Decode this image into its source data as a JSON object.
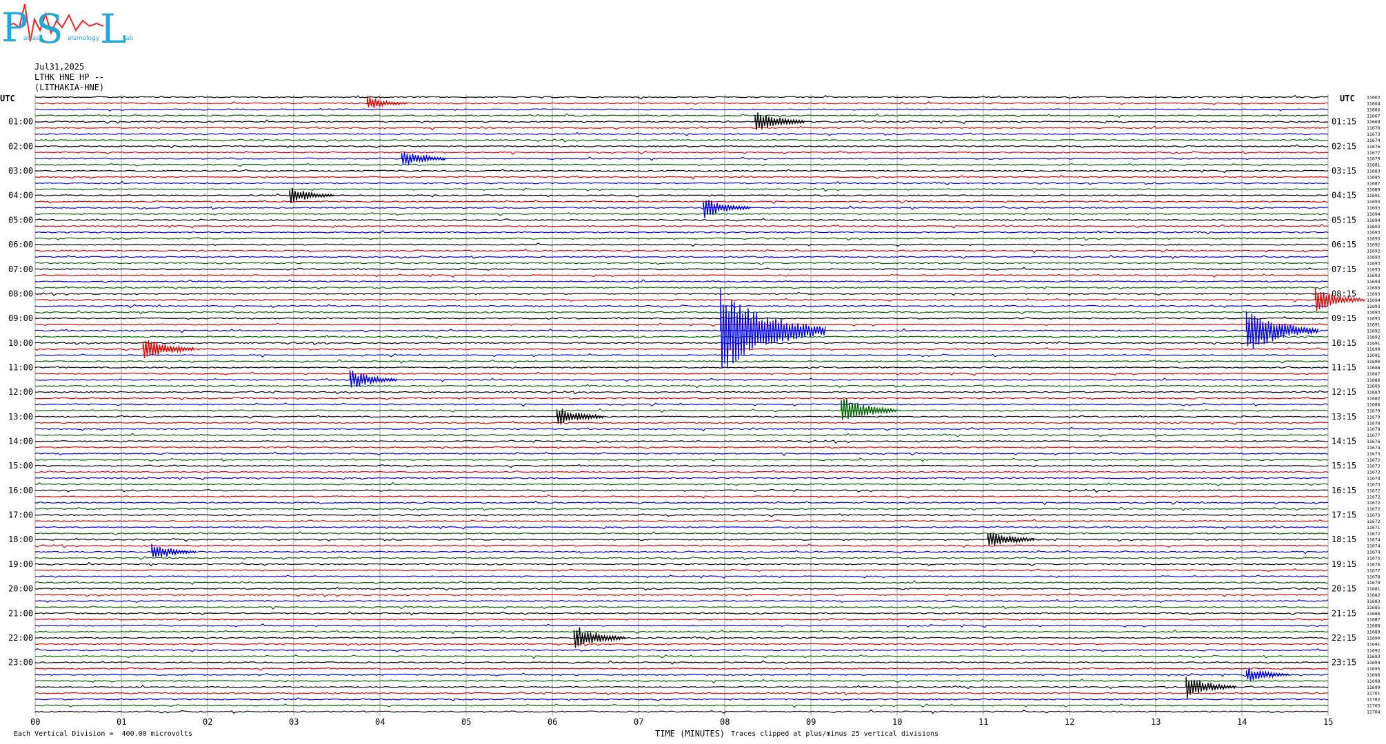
{
  "logo": {
    "letters": [
      "P",
      "S",
      "L"
    ],
    "words": [
      "atras",
      "eismology",
      "ab"
    ]
  },
  "header": {
    "date": "Jul31,2025",
    "station": "LTHK HNE HP --",
    "location": "(LITHAKIA-HNE)"
  },
  "left_axis_title": "UTC",
  "right_axis_title": "UTC",
  "footer": {
    "xlabel": "TIME (MINUTES)",
    "division": "Each Vertical Division =  400.00 microvolts",
    "clip_note": "Traces clipped at plus/minus 25 vertical divisions"
  },
  "colors": {
    "cycle": [
      "#000000",
      "#e00000",
      "#0000e0",
      "#006400"
    ],
    "grid": "#a0a0a0"
  },
  "chart_data": {
    "type": "line",
    "title": "",
    "xlabel": "TIME (MINUTES)",
    "xlim": [
      0,
      15
    ],
    "x_ticks": [
      "00",
      "01",
      "02",
      "03",
      "04",
      "05",
      "06",
      "07",
      "08",
      "09",
      "10",
      "11",
      "12",
      "13",
      "14",
      "15"
    ],
    "rows_per_hour": 4,
    "row_minutes": 15,
    "left_hour_labels": [
      "01:00",
      "02:00",
      "03:00",
      "04:00",
      "05:00",
      "06:00",
      "07:00",
      "08:00",
      "09:00",
      "10:00",
      "11:00",
      "12:00",
      "13:00",
      "14:00",
      "15:00",
      "16:00",
      "17:00",
      "18:00",
      "19:00",
      "20:00",
      "21:00",
      "22:00",
      "23:00"
    ],
    "right_hour_labels": [
      "01:15",
      "02:15",
      "03:15",
      "04:15",
      "05:15",
      "06:15",
      "07:15",
      "08:15",
      "09:15",
      "10:15",
      "11:15",
      "12:15",
      "13:15",
      "14:15",
      "15:15",
      "16:15",
      "17:15",
      "18:15",
      "19:15",
      "20:15",
      "21:15",
      "22:15",
      "23:15"
    ],
    "right_row_values": [
      11663,
      11664,
      11666,
      11667,
      11669,
      11670,
      11673,
      11674,
      11676,
      11677,
      11679,
      11681,
      11683,
      11685,
      11687,
      11689,
      11691,
      11693,
      11693,
      11694,
      11694,
      11693,
      11693,
      11693,
      11692,
      11692,
      11693,
      11693,
      11693,
      11693,
      11694,
      11693,
      11693,
      11694,
      11693,
      11693,
      11693,
      11691,
      11692,
      11692,
      11691,
      11690,
      11691,
      11690,
      11688,
      11687,
      11686,
      11685,
      11683,
      11682,
      11680,
      11679,
      11679,
      11678,
      11678,
      11677,
      11676,
      11674,
      11673,
      11672,
      11672,
      11672,
      11674,
      11673,
      11672,
      11672,
      11672,
      11672,
      11673,
      11672,
      11671,
      11672,
      11674,
      11674,
      11674,
      11675,
      11676,
      11677,
      11678,
      11679,
      11681,
      11682,
      11683,
      11685,
      11686,
      11687,
      11688,
      11689,
      11690,
      11691,
      11692,
      11693,
      11694,
      11695,
      11696,
      11698,
      11699,
      11701,
      11702,
      11703,
      11704
    ],
    "events": [
      {
        "row": 1,
        "minute": 3.9,
        "amp": 1.2
      },
      {
        "row": 4,
        "minute": 8.4,
        "amp": 2.0
      },
      {
        "row": 10,
        "minute": 4.3,
        "amp": 1.6
      },
      {
        "row": 16,
        "minute": 3.0,
        "amp": 1.5
      },
      {
        "row": 18,
        "minute": 7.8,
        "amp": 1.8
      },
      {
        "row": 33,
        "minute": 14.9,
        "amp": 2.0
      },
      {
        "row": 38,
        "minute": 8.0,
        "amp": 7.0
      },
      {
        "row": 38,
        "minute": 14.1,
        "amp": 4.0
      },
      {
        "row": 41,
        "minute": 1.3,
        "amp": 2.2
      },
      {
        "row": 46,
        "minute": 3.7,
        "amp": 1.8
      },
      {
        "row": 51,
        "minute": 9.4,
        "amp": 2.5
      },
      {
        "row": 52,
        "minute": 6.1,
        "amp": 1.8
      },
      {
        "row": 72,
        "minute": 11.1,
        "amp": 1.8
      },
      {
        "row": 74,
        "minute": 1.4,
        "amp": 1.6
      },
      {
        "row": 88,
        "minute": 6.3,
        "amp": 2.2
      },
      {
        "row": 94,
        "minute": 14.1,
        "amp": 1.4
      },
      {
        "row": 96,
        "minute": 13.4,
        "amp": 2.0
      }
    ]
  }
}
